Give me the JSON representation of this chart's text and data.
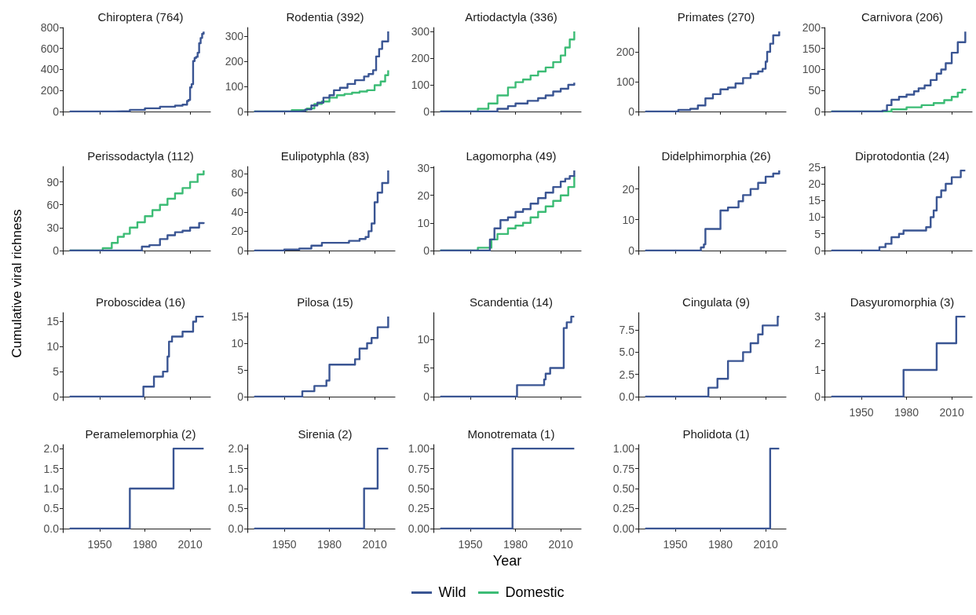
{
  "chart_data": [
    {
      "type": "step",
      "title": "Chiroptera (764)",
      "legend": "bottom",
      "tick_labels": "y",
      "xlim": [
        1925.5,
        2023.5
      ],
      "xticks": [
        1950,
        1980,
        2010
      ],
      "ylim": [
        -38,
        800
      ],
      "yticks": [
        0,
        200,
        400,
        600,
        800
      ],
      "series": [
        {
          "name": "Wild",
          "color": "#3a5593",
          "x": [
            1930,
            1950,
            1960,
            1970,
            1980,
            1990,
            2000,
            2005,
            2008,
            2009,
            2010,
            2011,
            2012,
            2013,
            2014,
            2015,
            2016,
            2017,
            2018,
            2019
          ],
          "values": [
            0,
            0,
            3,
            15,
            30,
            45,
            55,
            65,
            100,
            110,
            230,
            260,
            480,
            510,
            520,
            560,
            650,
            700,
            740,
            760
          ]
        }
      ]
    },
    {
      "type": "step",
      "title": "Rodentia (392)",
      "legend": "bottom",
      "tick_labels": "y",
      "xlim": [
        1925.5,
        2023.5
      ],
      "xticks": [
        1950,
        1980,
        2010
      ],
      "ylim": [
        -16,
        336
      ],
      "yticks": [
        0,
        100,
        200,
        300
      ],
      "series": [
        {
          "name": "Domestic",
          "color": "#3cbc75",
          "x": [
            1930,
            1955,
            1965,
            1970,
            1975,
            1980,
            1985,
            1990,
            1995,
            2000,
            2005,
            2010,
            2014,
            2017,
            2019
          ],
          "values": [
            0,
            5,
            12,
            30,
            40,
            55,
            65,
            70,
            75,
            80,
            85,
            105,
            120,
            145,
            165
          ]
        },
        {
          "name": "Wild",
          "color": "#3a5593",
          "x": [
            1930,
            1960,
            1964,
            1968,
            1972,
            1976,
            1980,
            1983,
            1987,
            1992,
            1997,
            2003,
            2006,
            2009,
            2011,
            2013,
            2015,
            2019
          ],
          "values": [
            0,
            2,
            8,
            24,
            35,
            55,
            65,
            85,
            95,
            110,
            125,
            140,
            150,
            165,
            220,
            250,
            280,
            320
          ]
        }
      ]
    },
    {
      "type": "step",
      "title": "Artiodactyla (336)",
      "legend": "bottom",
      "tick_labels": "y",
      "xlim": [
        1925.5,
        2023.5
      ],
      "xticks": [
        1950,
        1980,
        2010
      ],
      "ylim": [
        -15,
        315
      ],
      "yticks": [
        0,
        100,
        200,
        300
      ],
      "series": [
        {
          "name": "Domestic",
          "color": "#3cbc75",
          "x": [
            1930,
            1950,
            1955,
            1962,
            1968,
            1975,
            1980,
            1985,
            1990,
            1995,
            2000,
            2005,
            2010,
            2013,
            2016,
            2019
          ],
          "values": [
            0,
            0,
            10,
            30,
            60,
            90,
            110,
            120,
            135,
            150,
            165,
            185,
            210,
            240,
            270,
            300
          ]
        },
        {
          "name": "Wild",
          "color": "#3a5593",
          "x": [
            1930,
            1960,
            1968,
            1975,
            1980,
            1988,
            1995,
            2000,
            2005,
            2010,
            2015,
            2019
          ],
          "values": [
            0,
            0,
            10,
            20,
            30,
            40,
            50,
            60,
            75,
            85,
            100,
            108
          ]
        }
      ]
    },
    {
      "type": "step",
      "title": "Primates (270)",
      "legend": "bottom",
      "tick_labels": "y",
      "xlim": [
        1925.5,
        2023.5
      ],
      "xticks": [
        1950,
        1980,
        2010
      ],
      "ylim": [
        -13.4,
        281.4
      ],
      "yticks": [
        0,
        100,
        200
      ],
      "series": [
        {
          "name": "Wild",
          "color": "#3a5593",
          "x": [
            1930,
            1952,
            1960,
            1965,
            1970,
            1975,
            1980,
            1985,
            1990,
            1995,
            2000,
            2005,
            2008,
            2010,
            2011,
            2013,
            2015,
            2019
          ],
          "values": [
            0,
            5,
            9,
            20,
            44,
            58,
            74,
            80,
            94,
            112,
            126,
            134,
            143,
            167,
            200,
            227,
            255,
            268
          ]
        }
      ]
    },
    {
      "type": "step",
      "title": "Carnivora (206)",
      "legend": "bottom",
      "tick_labels": "y",
      "xlim": [
        1925.5,
        2023.5
      ],
      "xticks": [
        1950,
        1980,
        2010
      ],
      "ylim": [
        -9.5,
        200
      ],
      "yticks": [
        0,
        50,
        100,
        150,
        200
      ],
      "series": [
        {
          "name": "Domestic",
          "color": "#3cbc75",
          "x": [
            1930,
            1960,
            1970,
            1980,
            1990,
            1998,
            2005,
            2010,
            2014,
            2017,
            2019
          ],
          "values": [
            0,
            0,
            5,
            10,
            15,
            20,
            27,
            35,
            45,
            52,
            54
          ]
        },
        {
          "name": "Wild",
          "color": "#3a5593",
          "x": [
            1930,
            1960,
            1964,
            1967,
            1970,
            1975,
            1980,
            1985,
            1988,
            1992,
            1996,
            2000,
            2003,
            2006,
            2010,
            2014,
            2019
          ],
          "values": [
            0,
            0,
            2,
            15,
            28,
            35,
            40,
            48,
            55,
            62,
            75,
            90,
            100,
            115,
            140,
            165,
            190
          ]
        }
      ]
    },
    {
      "type": "step",
      "title": "Perissodactyla (112)",
      "ylabel": "Cumulative viral richness",
      "legend": "bottom",
      "tick_labels": "y",
      "xlim": [
        1925.5,
        2023.5
      ],
      "xticks": [
        1950,
        1980,
        2010
      ],
      "ylim": [
        -5.25,
        110.25
      ],
      "yticks": [
        0,
        30,
        60,
        90
      ],
      "series": [
        {
          "name": "Domestic",
          "color": "#3cbc75",
          "x": [
            1930,
            1945,
            1952,
            1958,
            1962,
            1966,
            1970,
            1975,
            1980,
            1985,
            1990,
            1995,
            2000,
            2005,
            2010,
            2015,
            2019
          ],
          "values": [
            0,
            0,
            3,
            10,
            18,
            22,
            30,
            37,
            45,
            53,
            60,
            68,
            75,
            82,
            90,
            100,
            105
          ]
        },
        {
          "name": "Wild",
          "color": "#3a5593",
          "x": [
            1930,
            1975,
            1978,
            1983,
            1990,
            1995,
            2000,
            2005,
            2010,
            2016,
            2019
          ],
          "values": [
            0,
            0,
            5,
            7,
            15,
            20,
            24,
            26,
            30,
            36,
            37
          ]
        }
      ]
    },
    {
      "type": "step",
      "title": "Eulipotyphla (83)",
      "legend": "bottom",
      "tick_labels": "y",
      "xlim": [
        1925.5,
        2023.5
      ],
      "xticks": [
        1950,
        1980,
        2010
      ],
      "ylim": [
        -4.15,
        87.15
      ],
      "yticks": [
        0,
        20,
        40,
        60,
        80
      ],
      "series": [
        {
          "name": "Wild",
          "color": "#3a5593",
          "x": [
            1930,
            1945,
            1950,
            1960,
            1968,
            1975,
            1985,
            1993,
            2000,
            2004,
            2006,
            2008,
            2010,
            2012,
            2015,
            2019
          ],
          "values": [
            0,
            0,
            1,
            2,
            5,
            8,
            8,
            10,
            12,
            14,
            20,
            28,
            50,
            60,
            70,
            83
          ]
        }
      ]
    },
    {
      "type": "step",
      "title": "Lagomorpha (49)",
      "legend": "bottom",
      "tick_labels": "y",
      "xlim": [
        1925.5,
        2023.5
      ],
      "xticks": [
        1950,
        1980,
        2010
      ],
      "ylim": [
        -1.45,
        30.45
      ],
      "yticks": [
        0,
        10,
        20,
        30
      ],
      "series": [
        {
          "name": "Domestic",
          "color": "#3cbc75",
          "x": [
            1930,
            1955,
            1962,
            1964,
            1968,
            1975,
            1980,
            1985,
            1990,
            1995,
            2000,
            2005,
            2010,
            2015,
            2019
          ],
          "values": [
            0,
            1,
            1,
            4,
            6,
            8,
            9,
            10,
            12,
            14,
            16,
            18,
            20,
            23,
            27
          ]
        },
        {
          "name": "Wild",
          "color": "#3a5593",
          "x": [
            1930,
            1962,
            1963,
            1966,
            1970,
            1975,
            1980,
            1985,
            1990,
            1995,
            2000,
            2005,
            2010,
            2013,
            2016,
            2019
          ],
          "values": [
            0,
            0,
            4,
            8,
            11,
            12,
            14,
            15,
            17,
            19,
            21,
            23,
            25,
            26,
            27,
            29
          ]
        }
      ]
    },
    {
      "type": "step",
      "title": "Didelphimorphia (26)",
      "legend": "bottom",
      "tick_labels": "y",
      "xlim": [
        1925.5,
        2023.5
      ],
      "xticks": [
        1950,
        1980,
        2010
      ],
      "ylim": [
        -1.3,
        27.3
      ],
      "yticks": [
        0,
        10,
        20
      ],
      "series": [
        {
          "name": "Wild",
          "color": "#3a5593",
          "x": [
            1930,
            1966,
            1967,
            1969,
            1970,
            1979,
            1980,
            1985,
            1990,
            1992,
            1995,
            2000,
            2005,
            2010,
            2015,
            2019
          ],
          "values": [
            0,
            0,
            1,
            2,
            7,
            7,
            13,
            14,
            14,
            16,
            18,
            20,
            22,
            24,
            25,
            26
          ]
        }
      ]
    },
    {
      "type": "step",
      "title": "Diprotodontia (24)",
      "legend": "bottom",
      "tick_labels": "y",
      "xlim": [
        1925.5,
        2023.5
      ],
      "xticks": [
        1950,
        1980,
        2010
      ],
      "ylim": [
        -1.2,
        25.2
      ],
      "yticks": [
        0,
        5,
        10,
        15,
        20,
        25
      ],
      "series": [
        {
          "name": "Wild",
          "color": "#3a5593",
          "x": [
            1930,
            1960,
            1962,
            1966,
            1970,
            1975,
            1978,
            1990,
            1993,
            1996,
            1998,
            2000,
            2003,
            2006,
            2010,
            2016,
            2019
          ],
          "values": [
            0,
            0,
            1,
            2,
            4,
            5,
            6,
            6,
            7,
            10,
            12,
            16,
            18,
            20,
            22,
            24,
            24
          ]
        }
      ]
    },
    {
      "type": "step",
      "title": "Proboscidea (16)",
      "legend": "bottom",
      "tick_labels": "y",
      "xlim": [
        1925.5,
        2023.5
      ],
      "xticks": [
        1950,
        1980,
        2010
      ],
      "ylim": [
        -0.8,
        16.8
      ],
      "yticks": [
        0,
        5,
        10,
        15
      ],
      "series": [
        {
          "name": "Wild",
          "color": "#3a5593",
          "x": [
            1930,
            1978,
            1979,
            1986,
            1992,
            1995,
            1996,
            1998,
            2005,
            2012,
            2014,
            2019
          ],
          "values": [
            0,
            0,
            2,
            4,
            5,
            8,
            11,
            12,
            13,
            15,
            16,
            16
          ]
        }
      ]
    },
    {
      "type": "step",
      "title": "Pilosa (15)",
      "legend": "bottom",
      "tick_labels": "y",
      "xlim": [
        1925.5,
        2023.5
      ],
      "xticks": [
        1950,
        1980,
        2010
      ],
      "ylim": [
        -0.75,
        15.75
      ],
      "yticks": [
        0,
        5,
        10,
        15
      ],
      "series": [
        {
          "name": "Wild",
          "color": "#3a5593",
          "x": [
            1930,
            1960,
            1962,
            1970,
            1978,
            1980,
            1995,
            1997,
            2000,
            2005,
            2008,
            2012,
            2019
          ],
          "values": [
            0,
            0,
            1,
            2,
            3,
            6,
            6,
            7,
            9,
            10,
            11,
            13,
            15
          ]
        }
      ]
    },
    {
      "type": "step",
      "title": "Scandentia (14)",
      "legend": "bottom",
      "tick_labels": "y",
      "xlim": [
        1925.5,
        2023.5
      ],
      "xticks": [
        1950,
        1980,
        2010
      ],
      "ylim": [
        -0.7,
        14.7
      ],
      "yticks": [
        0,
        5,
        10
      ],
      "series": [
        {
          "name": "Wild",
          "color": "#3a5593",
          "x": [
            1930,
            1980,
            1981,
            1997,
            1999,
            2000,
            2003,
            2010,
            2012,
            2014,
            2017,
            2019
          ],
          "values": [
            0,
            0,
            2,
            2,
            3,
            4,
            5,
            5,
            12,
            13,
            14,
            14
          ]
        }
      ]
    },
    {
      "type": "step",
      "title": "Cingulata (9)",
      "legend": "bottom",
      "tick_labels": "y",
      "xlim": [
        1925.5,
        2023.5
      ],
      "xticks": [
        1950,
        1980,
        2010
      ],
      "ylim": [
        -0.45,
        9.45
      ],
      "yticks": [
        {
          "value": 0,
          "label": "0.0"
        },
        2.5,
        {
          "value": 5,
          "label": "5.0"
        },
        7.5
      ],
      "series": [
        {
          "name": "Wild",
          "color": "#3a5593",
          "x": [
            1930,
            1970,
            1972,
            1978,
            1985,
            1995,
            2000,
            2005,
            2008,
            2018,
            2019
          ],
          "values": [
            0,
            0,
            1,
            2,
            4,
            5,
            6,
            7,
            8,
            9,
            9
          ]
        }
      ]
    },
    {
      "type": "step",
      "title": "Dasyuromorphia (3)",
      "legend": "bottom",
      "xlim": [
        1925.5,
        2023.5
      ],
      "xticks": [
        1950,
        1980,
        2010
      ],
      "ylim": [
        -0.15,
        3.15
      ],
      "yticks": [
        0,
        1,
        2,
        3
      ],
      "series": [
        {
          "name": "Wild",
          "color": "#3a5593",
          "x": [
            1930,
            1978,
            2000,
            2013,
            2019
          ],
          "values": [
            0,
            1,
            2,
            3,
            3
          ]
        }
      ]
    },
    {
      "type": "step",
      "title": "Peramelemorphia (2)",
      "legend": "bottom",
      "xlim": [
        1925.5,
        2023.5
      ],
      "xticks": [
        1950,
        1980,
        2010
      ],
      "ylim": [
        -0.1,
        2.1
      ],
      "yticks": [
        {
          "value": 0,
          "label": "0.0"
        },
        0.5,
        {
          "value": 1,
          "label": "1.0"
        },
        1.5,
        {
          "value": 2,
          "label": "2.0"
        }
      ],
      "series": [
        {
          "name": "Wild",
          "color": "#3a5593",
          "x": [
            1930,
            1970,
            1999,
            2019
          ],
          "values": [
            0,
            1,
            2,
            2
          ]
        }
      ]
    },
    {
      "type": "step",
      "title": "Sirenia (2)",
      "legend": "bottom",
      "xlim": [
        1925.5,
        2023.5
      ],
      "xticks": [
        1950,
        1980,
        2010
      ],
      "ylim": [
        -0.1,
        2.1
      ],
      "yticks": [
        {
          "value": 0,
          "label": "0.0"
        },
        0.5,
        {
          "value": 1,
          "label": "1.0"
        },
        1.5,
        {
          "value": 2,
          "label": "2.0"
        }
      ],
      "series": [
        {
          "name": "Wild",
          "color": "#3a5593",
          "x": [
            1930,
            2003,
            2012,
            2019
          ],
          "values": [
            0,
            1,
            2,
            2
          ]
        }
      ]
    },
    {
      "type": "step",
      "title": "Monotremata (1)",
      "xlabel": "Year",
      "legend": "bottom",
      "xlim": [
        1925.5,
        2023.5
      ],
      "xticks": [
        1950,
        1980,
        2010
      ],
      "ylim": [
        -0.05,
        1.05
      ],
      "yticks": [
        {
          "value": 0,
          "label": "0.00"
        },
        0.25,
        {
          "value": 0.5,
          "label": "0.50"
        },
        0.75,
        {
          "value": 1,
          "label": "1.00"
        }
      ],
      "series": [
        {
          "name": "Wild",
          "color": "#3a5593",
          "x": [
            1930,
            1978,
            2019
          ],
          "values": [
            0,
            1,
            1
          ]
        }
      ]
    },
    {
      "type": "step",
      "title": "Pholidota (1)",
      "legend": "bottom",
      "xlim": [
        1925.5,
        2023.5
      ],
      "xticks": [
        1950,
        1980,
        2010
      ],
      "ylim": [
        -0.05,
        1.05
      ],
      "yticks": [
        {
          "value": 0,
          "label": "0.00"
        },
        0.25,
        {
          "value": 0.5,
          "label": "0.50"
        },
        0.75,
        {
          "value": 1,
          "label": "1.00"
        }
      ],
      "series": [
        {
          "name": "Wild",
          "color": "#3a5593",
          "x": [
            1930,
            2013,
            2019
          ],
          "values": [
            0,
            1,
            1
          ]
        }
      ]
    }
  ]
}
